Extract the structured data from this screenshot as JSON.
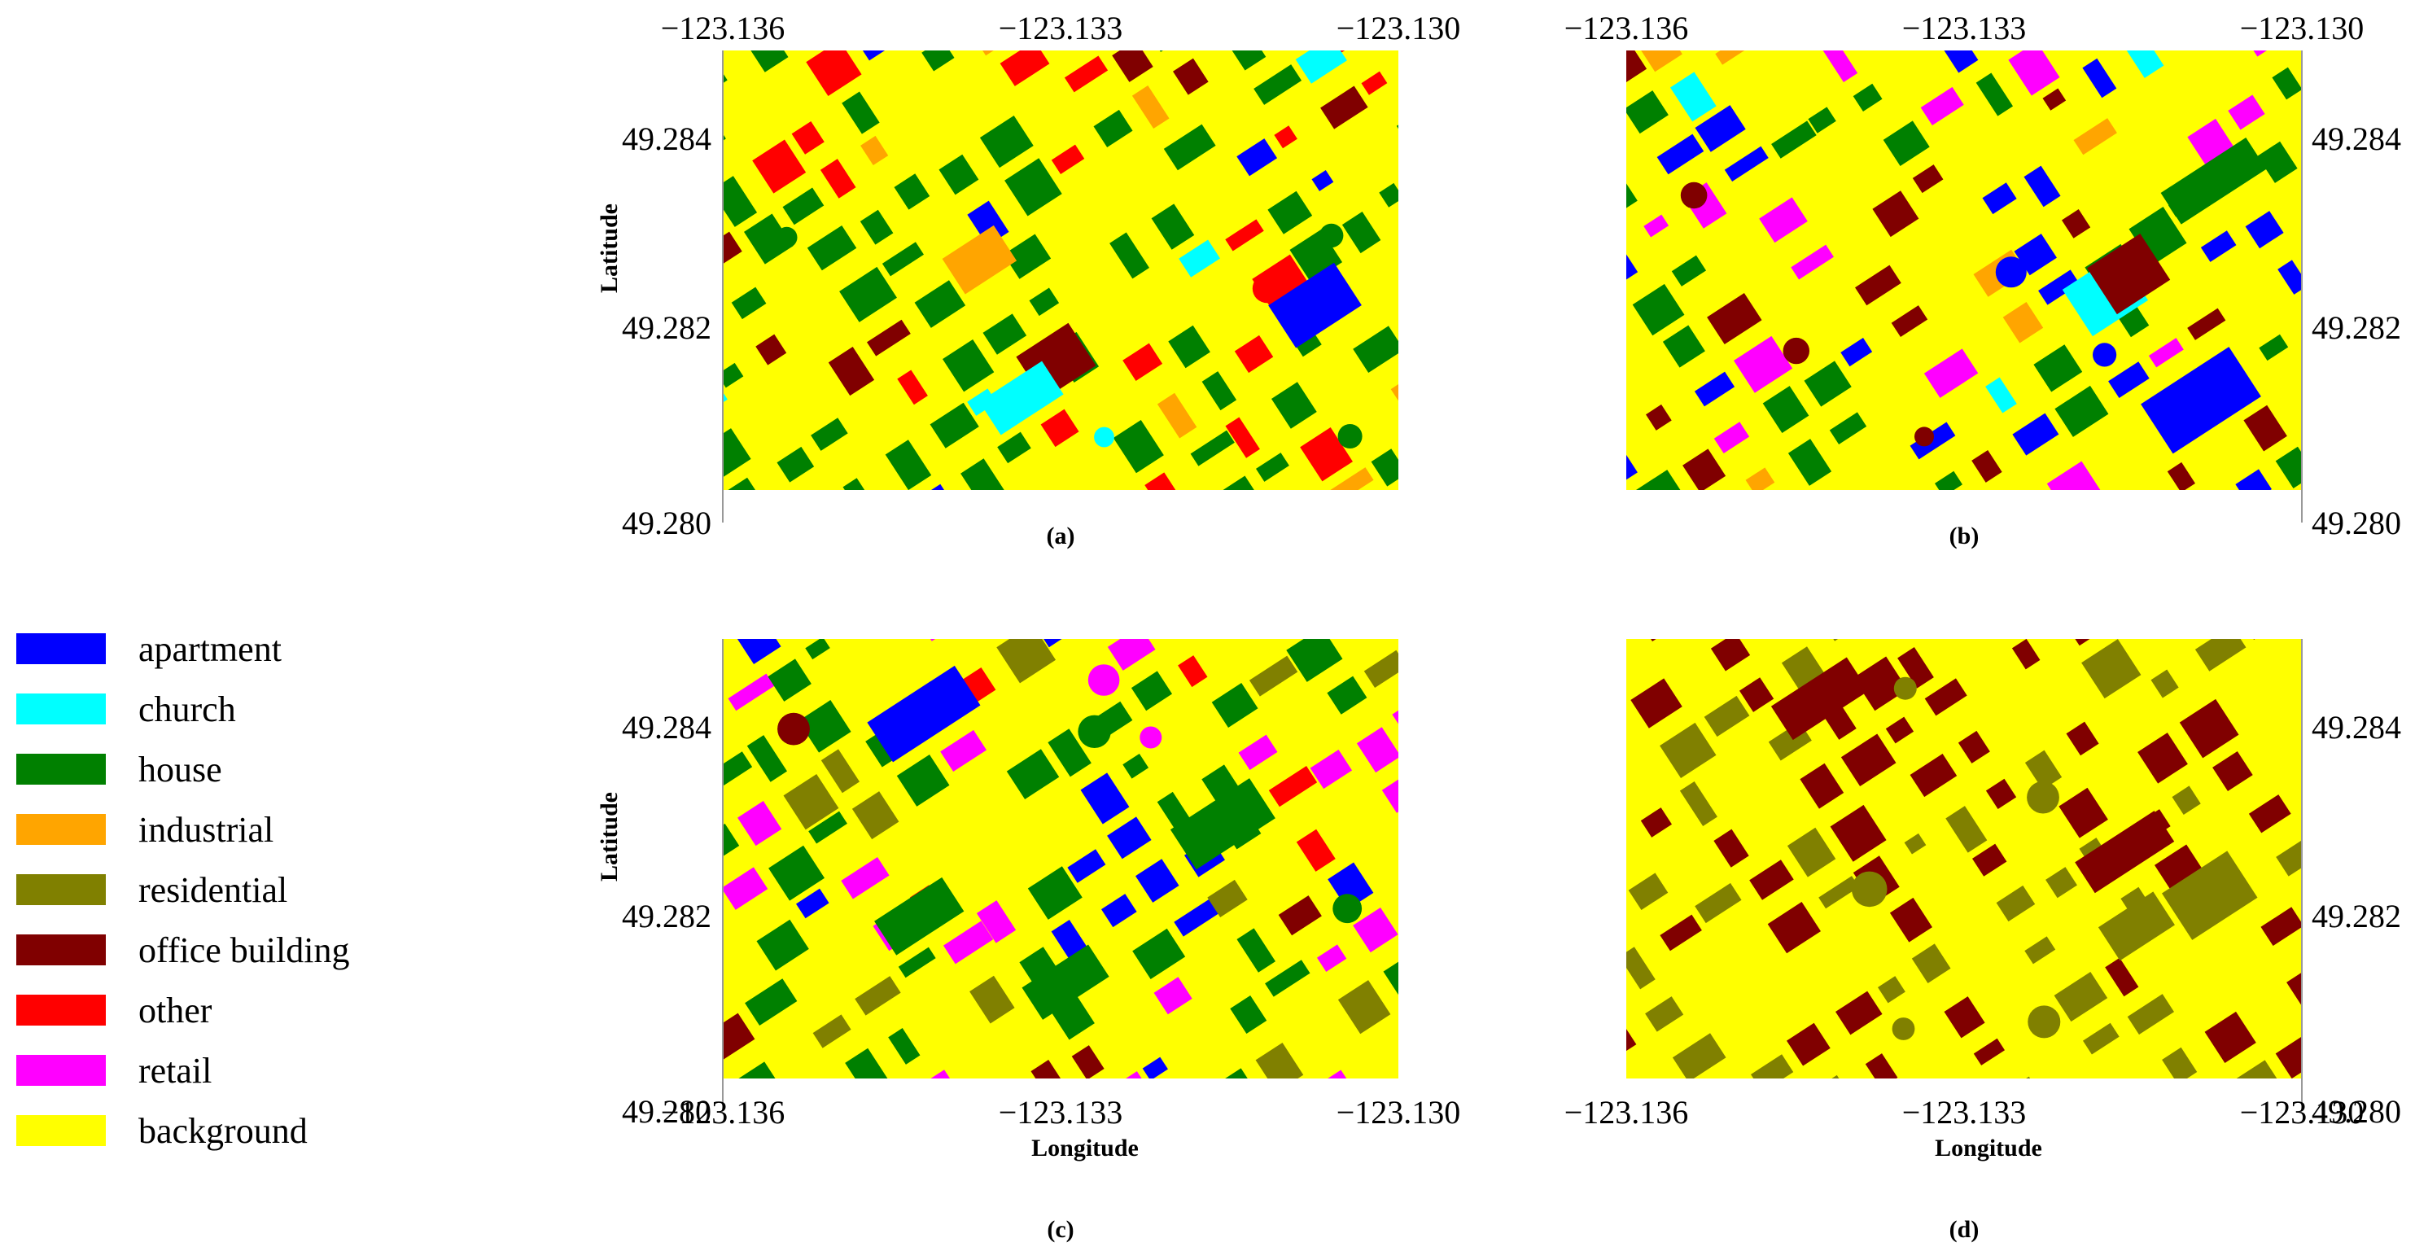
{
  "legend": {
    "items": [
      {
        "label": "apartment",
        "color": "#0000FF"
      },
      {
        "label": "church",
        "color": "#00FFFF"
      },
      {
        "label": "house",
        "color": "#008000"
      },
      {
        "label": "industrial",
        "color": "#FFA500"
      },
      {
        "label": "residential",
        "color": "#808000"
      },
      {
        "label": "office building",
        "color": "#800000"
      },
      {
        "label": "other",
        "color": "#FF0000"
      },
      {
        "label": "retail",
        "color": "#FF00FF"
      },
      {
        "label": "background",
        "color": "#FFFF00"
      }
    ]
  },
  "colors": {
    "background": "#FFFF00",
    "apartment": "#0000FF",
    "church": "#00FFFF",
    "house": "#008000",
    "industrial": "#FFA500",
    "residential": "#808000",
    "office": "#800000",
    "other": "#FF0000",
    "retail": "#FF00FF"
  },
  "axes": {
    "longitude_ticks": [
      "−123.136",
      "−123.133",
      "−123.130"
    ],
    "latitude_ticks": [
      "49.284",
      "49.282",
      "49.280"
    ],
    "latitude_label": "Latitude",
    "longitude_label": "Longitude"
  },
  "panels": [
    {
      "id": "a",
      "caption": "(a)",
      "palette": [
        "house",
        "house",
        "house",
        "house",
        "house",
        "house",
        "house",
        "office",
        "other",
        "other",
        "apartment",
        "industrial",
        "church"
      ]
    },
    {
      "id": "b",
      "caption": "(b)",
      "palette": [
        "office",
        "office",
        "office",
        "apartment",
        "apartment",
        "apartment",
        "house",
        "house",
        "retail",
        "retail",
        "church",
        "industrial"
      ]
    },
    {
      "id": "c",
      "caption": "(c)",
      "palette": [
        "apartment",
        "house",
        "house",
        "retail",
        "residential",
        "office",
        "other",
        "apartment",
        "retail",
        "house"
      ]
    },
    {
      "id": "d",
      "caption": "(d)",
      "palette": [
        "residential",
        "residential",
        "residential",
        "office",
        "office",
        "office"
      ]
    }
  ]
}
